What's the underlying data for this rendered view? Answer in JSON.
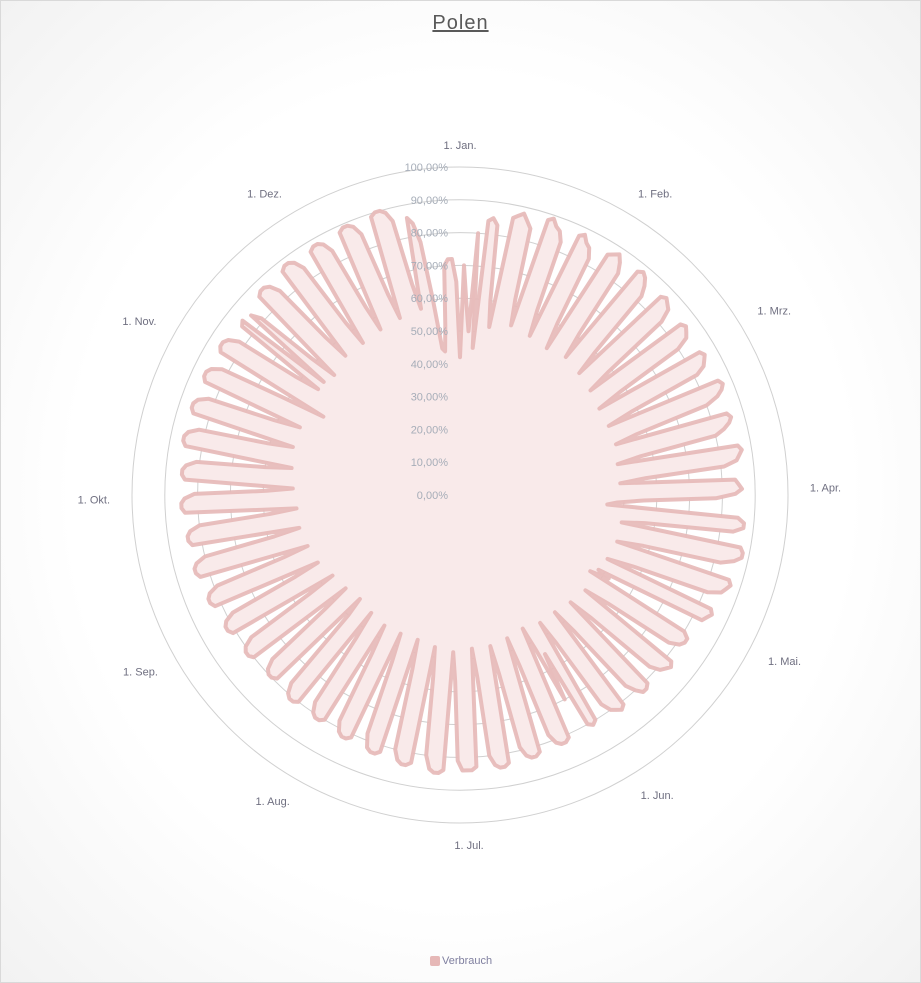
{
  "chart_data": {
    "type": "radar",
    "title": "Polen",
    "legend": {
      "entries": [
        "Verbrauch"
      ],
      "placement": "bottom"
    },
    "radial_axis": {
      "min": 0,
      "max": 100,
      "step": 10,
      "tick_labels": [
        "0,00%",
        "10,00%",
        "20,00%",
        "30,00%",
        "40,00%",
        "50,00%",
        "60,00%",
        "70,00%",
        "80,00%",
        "90,00%",
        "100,00%"
      ]
    },
    "category_labels": [
      {
        "label": "1. Jan.",
        "day": 0
      },
      {
        "label": "1. Feb.",
        "day": 31
      },
      {
        "label": "1. Mrz.",
        "day": 59
      },
      {
        "label": "1. Apr.",
        "day": 90
      },
      {
        "label": "1. Mai.",
        "day": 120
      },
      {
        "label": "1. Jun.",
        "day": 151
      },
      {
        "label": "1. Jul.",
        "day": 181
      },
      {
        "label": "1. Aug.",
        "day": 212
      },
      {
        "label": "1. Sep.",
        "day": 243
      },
      {
        "label": "1. Okt.",
        "day": 273
      },
      {
        "label": "1. Nov.",
        "day": 304
      },
      {
        "label": "1. Dez.",
        "day": 334
      }
    ],
    "colors": {
      "series_line": "#e6b8b7",
      "series_fill": "#f9eaea",
      "grid": "#d0d0d0"
    },
    "series": [
      {
        "name": "Verbrauch",
        "unit": "%",
        "values": [
          42,
          70,
          58,
          50,
          80,
          45,
          84,
          85,
          83,
          60,
          52,
          86,
          87,
          88,
          86,
          84,
          62,
          54,
          88,
          89,
          87,
          86,
          83,
          61,
          53,
          87,
          88,
          86,
          85,
          82,
          60,
          52,
          86,
          87,
          88,
          86,
          83,
          61,
          53,
          87,
          88,
          87,
          85,
          82,
          60,
          52,
          86,
          87,
          86,
          85,
          81,
          59,
          51,
          85,
          86,
          85,
          84,
          80,
          58,
          50,
          85,
          86,
          85,
          84,
          81,
          58,
          50,
          86,
          87,
          86,
          84,
          80,
          57,
          50,
          85,
          86,
          85,
          83,
          80,
          56,
          49,
          86,
          87,
          86,
          85,
          81,
          57,
          49,
          84,
          85,
          86,
          84,
          78,
          56,
          48,
          45,
          85,
          87,
          87,
          84,
          57,
          50,
          87,
          88,
          88,
          86,
          82,
          58,
          50,
          86,
          87,
          86,
          85,
          81,
          57,
          49,
          84,
          85,
          84,
          83,
          48,
          52,
          46,
          80,
          82,
          82,
          81,
          78,
          56,
          48,
          82,
          83,
          82,
          81,
          78,
          55,
          47,
          81,
          82,
          82,
          80,
          77,
          54,
          46,
          81,
          82,
          81,
          80,
          77,
          54,
          46,
          80,
          81,
          80,
          55,
          70,
          53,
          45,
          81,
          82,
          82,
          81,
          78,
          55,
          46,
          82,
          83,
          83,
          82,
          79,
          56,
          47,
          83,
          84,
          84,
          83,
          80,
          56,
          47,
          83,
          84,
          84,
          84,
          81,
          57,
          48,
          84,
          85,
          85,
          84,
          80,
          56,
          47,
          83,
          84,
          84,
          83,
          80,
          55,
          46,
          82,
          83,
          83,
          82,
          78,
          55,
          46,
          81,
          82,
          82,
          81,
          78,
          55,
          46,
          80,
          81,
          81,
          80,
          77,
          54,
          45,
          80,
          81,
          81,
          80,
          77,
          50,
          44,
          79,
          80,
          80,
          79,
          76,
          54,
          45,
          80,
          81,
          81,
          80,
          77,
          55,
          46,
          81,
          82,
          82,
          81,
          78,
          56,
          48,
          82,
          83,
          83,
          82,
          79,
          57,
          49,
          83,
          84,
          84,
          83,
          80,
          58,
          50,
          83,
          84,
          84,
          83,
          80,
          58,
          50,
          84,
          85,
          85,
          84,
          81,
          59,
          51,
          84,
          85,
          85,
          84,
          81,
          60,
          52,
          85,
          86,
          86,
          85,
          82,
          61,
          53,
          85,
          86,
          86,
          85,
          82,
          61,
          53,
          85,
          86,
          86,
          85,
          82,
          62,
          48,
          85,
          86,
          86,
          85,
          82,
          62,
          54,
          84,
          85,
          54,
          84,
          81,
          61,
          53,
          86,
          87,
          87,
          86,
          83,
          63,
          55,
          87,
          88,
          88,
          87,
          84,
          63,
          55,
          87,
          88,
          88,
          87,
          84,
          64,
          56,
          88,
          89,
          89,
          88,
          85,
          65,
          57,
          89,
          90,
          90,
          89,
          86,
          66,
          58,
          86,
          84,
          78,
          60,
          45,
          44,
          52,
          70,
          72,
          72,
          65
        ]
      }
    ]
  }
}
